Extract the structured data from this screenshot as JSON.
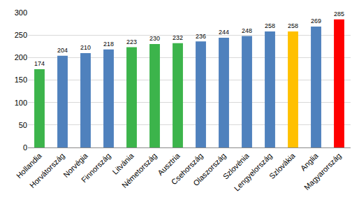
{
  "chart_data": {
    "type": "bar",
    "categories": [
      "Hollandia",
      "Horvátország",
      "Norvégia",
      "Finnország",
      "Litvánia",
      "Németország",
      "Ausztria",
      "Csehország",
      "Olaszország",
      "Szlovénia",
      "Lengyelország",
      "Szlovákia",
      "Anglia",
      "Magyarország"
    ],
    "values": [
      174,
      204,
      210,
      218,
      223,
      230,
      232,
      236,
      244,
      248,
      258,
      258,
      269,
      285
    ],
    "colors": [
      "#3cb44b",
      "#4f81bd",
      "#4f81bd",
      "#4f81bd",
      "#3cb44b",
      "#3cb44b",
      "#3cb44b",
      "#4f81bd",
      "#4f81bd",
      "#4f81bd",
      "#4f81bd",
      "#ffc000",
      "#4f81bd",
      "#ff0000"
    ],
    "ylim": [
      0,
      300
    ],
    "yticks": [
      0,
      50,
      100,
      150,
      200,
      250,
      300
    ],
    "grid": true,
    "data_labels": true
  }
}
